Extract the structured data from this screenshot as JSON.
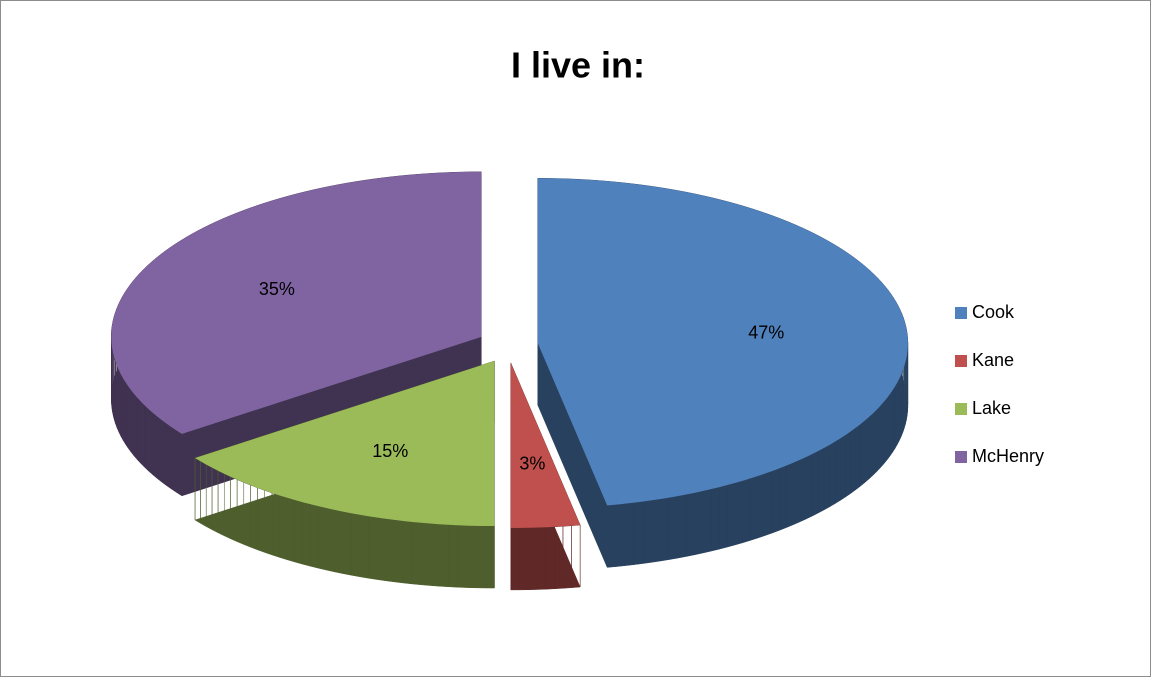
{
  "chart_data": {
    "type": "pie",
    "title": "I live in:",
    "categories": [
      "Cook",
      "Kane",
      "Lake",
      "McHenry"
    ],
    "values": [
      47,
      3,
      15,
      35
    ],
    "value_labels": [
      "47%",
      "3%",
      "15%",
      "35%"
    ],
    "colors": [
      "#4f81bd",
      "#c0504d",
      "#9bbb59",
      "#8064a2"
    ],
    "legend": "right"
  }
}
